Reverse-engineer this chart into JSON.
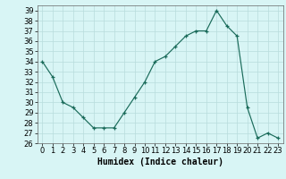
{
  "x": [
    0,
    1,
    2,
    3,
    4,
    5,
    6,
    7,
    8,
    9,
    10,
    11,
    12,
    13,
    14,
    15,
    16,
    17,
    18,
    19,
    20,
    21,
    22,
    23
  ],
  "y": [
    34,
    32.5,
    30,
    29.5,
    28.5,
    27.5,
    27.5,
    27.5,
    29,
    30.5,
    32,
    34,
    34.5,
    35.5,
    36.5,
    37,
    37,
    39,
    37.5,
    36.5,
    29.5,
    26.5,
    27,
    26.5
  ],
  "xlabel": "Humidex (Indice chaleur)",
  "ylabel": "",
  "xlim": [
    -0.5,
    23.5
  ],
  "ylim": [
    26,
    39.5
  ],
  "yticks": [
    26,
    27,
    28,
    29,
    30,
    31,
    32,
    33,
    34,
    35,
    36,
    37,
    38,
    39
  ],
  "xticks": [
    0,
    1,
    2,
    3,
    4,
    5,
    6,
    7,
    8,
    9,
    10,
    11,
    12,
    13,
    14,
    15,
    16,
    17,
    18,
    19,
    20,
    21,
    22,
    23
  ],
  "line_color": "#1a6b5a",
  "bg_color": "#d8f5f5",
  "grid_color": "#b8dcdc",
  "label_fontsize": 7,
  "tick_fontsize": 6
}
